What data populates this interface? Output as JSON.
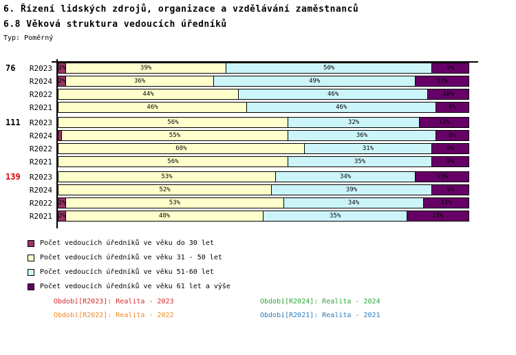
{
  "header": {
    "title": "6. Řízení lidských zdrojů, organizace a vzdělávání zaměstnanců",
    "subtitle": "6.8 Věková struktura vedoucích úředníků",
    "type_label": "Typ: Poměrný"
  },
  "chart_data": {
    "type": "bar",
    "orientation": "horizontal-stacked",
    "unit": "%",
    "xlim": [
      0,
      100
    ],
    "grid": false,
    "legend_position": "bottom-left",
    "data_labels": "percent-inside-segment",
    "series": [
      {
        "name": "Počet vedoucích úředníků ve věku do 30 let",
        "color": "#993366"
      },
      {
        "name": "Počet vedoucích úředníků ve věku 31 - 50 let",
        "color": "#FFFFCC"
      },
      {
        "name": "Počet vedoucích úředníků ve věku 51-60 let",
        "color": "#CCF5FA"
      },
      {
        "name": "Počet vedoucích úředníků ve věku 61 let a výše",
        "color": "#660066"
      }
    ],
    "groups": [
      {
        "label": "76",
        "label_color": "#000000",
        "rows": [
          {
            "period": "R2023",
            "values": [
              2,
              39,
              50,
              9
            ]
          },
          {
            "period": "R2024",
            "values": [
              2,
              36,
              49,
              13
            ]
          },
          {
            "period": "R2022",
            "values": [
              0,
              44,
              46,
              10
            ]
          },
          {
            "period": "R2021",
            "values": [
              0,
              46,
              46,
              8
            ]
          }
        ]
      },
      {
        "label": "111",
        "label_color": "#000000",
        "rows": [
          {
            "period": "R2023",
            "values": [
              0,
              56,
              32,
              12
            ]
          },
          {
            "period": "R2024",
            "values": [
              1,
              55,
              36,
              8
            ]
          },
          {
            "period": "R2022",
            "values": [
              0,
              60,
              31,
              9
            ]
          },
          {
            "period": "R2021",
            "values": [
              0,
              56,
              35,
              9
            ]
          }
        ]
      },
      {
        "label": "139",
        "label_color": "#E00000",
        "rows": [
          {
            "period": "R2023",
            "values": [
              0,
              53,
              34,
              13
            ]
          },
          {
            "period": "R2024",
            "values": [
              0,
              52,
              39,
              9
            ]
          },
          {
            "period": "R2022",
            "values": [
              2,
              53,
              34,
              11
            ]
          },
          {
            "period": "R2021",
            "values": [
              2,
              48,
              35,
              15
            ]
          }
        ]
      }
    ]
  },
  "footnotes": [
    {
      "text": "Období[R2023]: Realita - 2023",
      "color": "#D42A2A"
    },
    {
      "text": "Období[R2024]: Realita - 2024",
      "color": "#2FA635"
    },
    {
      "text": "Období[R2022]: Realita - 2022",
      "color": "#EE8A22"
    },
    {
      "text": "Období[R2021]: Realita - 2021",
      "color": "#2B7BB9"
    }
  ]
}
